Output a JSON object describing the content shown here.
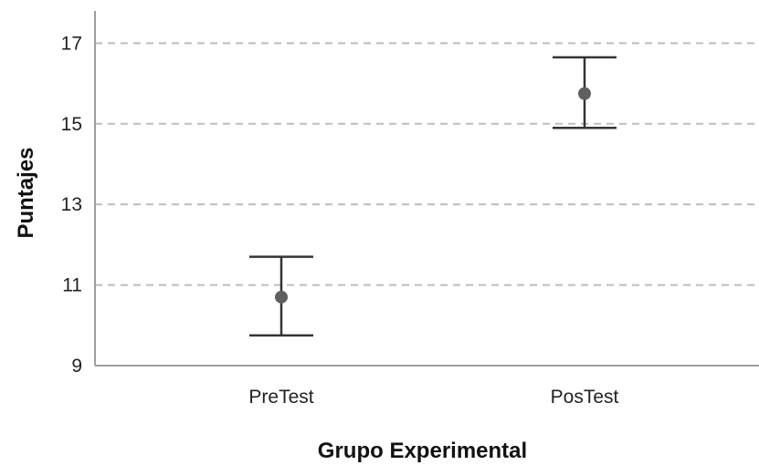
{
  "chart_data": {
    "type": "errorbar",
    "xlabel": "Grupo Experimental",
    "ylabel": "Puntajes",
    "ylim": [
      9,
      17.8
    ],
    "yticks": [
      9,
      11,
      13,
      15,
      17
    ],
    "grid": true,
    "categories": [
      "PreTest",
      "PosTest"
    ],
    "means": [
      10.7,
      15.75
    ],
    "lower": [
      9.75,
      14.9
    ],
    "upper": [
      11.7,
      16.65
    ]
  }
}
